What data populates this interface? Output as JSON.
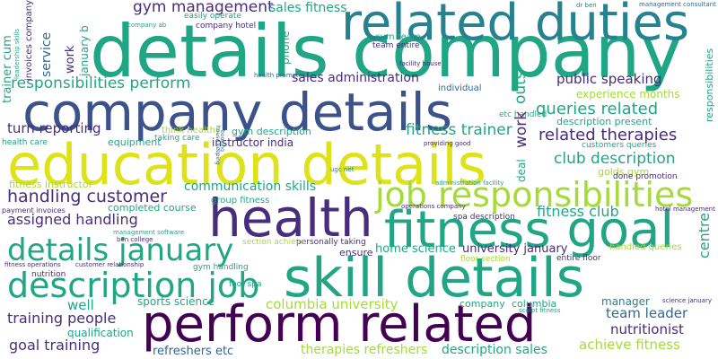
{
  "palette": {
    "yellow": "#dde318",
    "lime": "#a5db36",
    "green": "#5ec962",
    "teal": "#21a685",
    "sea": "#26828e",
    "blue": "#31688e",
    "indigo": "#3b528b",
    "violet": "#472d7b",
    "dark": "#440154"
  },
  "words": [
    "details company",
    "related duties",
    "company details",
    "education details",
    "health",
    "job responsibilities",
    "fitness goal",
    "skill details",
    "details january",
    "description job",
    "perform related",
    "gym management",
    "sales fitness",
    "responsibilities perform",
    "sales administration",
    "public speaking",
    "queries related",
    "related therapies",
    "club description",
    "fitness trainer",
    "handling customer",
    "communication skills",
    "assigned handling",
    "fitness club",
    "turn reporting",
    "columbia university",
    "training people",
    "goal training",
    "team leader",
    "nutritionist",
    "achieve fitness",
    "refreshers etc",
    "therapies refreshers",
    "description sales",
    "home science",
    "university january",
    "sports science",
    "qualification",
    "well",
    "manager",
    "company",
    "columbia",
    "completed course",
    "gym description",
    "instructor india",
    "think healthy",
    "taking care",
    "equipment",
    "health care",
    "fitness instructor",
    "experience months",
    "description present",
    "customers queries",
    "golds gym",
    "done promotion",
    "nutrition",
    "gym handling",
    "ensure",
    "floor section",
    "entire floor",
    "handled queries",
    "personally taking",
    "section achieve",
    "etc handled",
    "individual",
    "cum team",
    "team entire",
    "easily operate",
    "company hotel",
    "company ab",
    "service",
    "work",
    "january b",
    "trainer cum",
    "invoices company",
    "leadership skills",
    "phone",
    "outs",
    "work",
    "deal",
    "centre",
    "responsibilities",
    "facility house",
    "health promoter",
    "providing good",
    "group fitness",
    "spa description",
    "hotel management",
    "payment invoices",
    "management software",
    "ben college",
    "fitness operations",
    "customer relationship",
    "foot spa",
    "sculpt fitness",
    "science january",
    "dr ben",
    "management consultant",
    "administration facility",
    "operations company",
    "ugc net",
    "booking",
    "house keeping"
  ]
}
